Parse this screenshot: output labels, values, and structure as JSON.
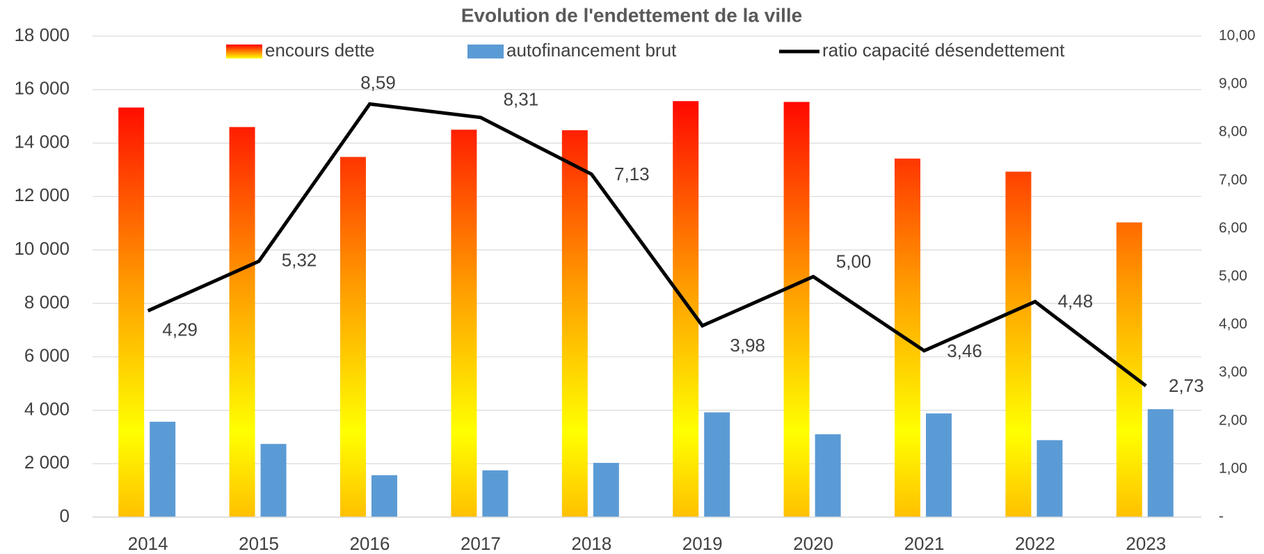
{
  "chart_data": {
    "type": "bar_line",
    "title": "Evolution de l'endettement de la ville",
    "categories": [
      "2014",
      "2015",
      "2016",
      "2017",
      "2018",
      "2019",
      "2020",
      "2021",
      "2022",
      "2023"
    ],
    "series": [
      {
        "name": "encours dette",
        "color": "gradient",
        "values": [
          15330,
          14600,
          13480,
          14500,
          14480,
          15570,
          15540,
          13420,
          12930,
          11030
        ]
      },
      {
        "name": "autofinancement brut",
        "color": "#5b9bd5",
        "values": [
          3570,
          2740,
          1570,
          1750,
          2030,
          3920,
          3100,
          3880,
          2880,
          4040
        ]
      },
      {
        "name": "ratio capacité désendettement",
        "color": "#000000",
        "axis": "y2",
        "type": "line",
        "values": [
          4.29,
          5.32,
          8.59,
          8.31,
          7.13,
          3.98,
          5.0,
          3.46,
          4.48,
          2.73
        ],
        "value_labels": [
          "4,29",
          "5,32",
          "8,59",
          "8,31",
          "7,13",
          "3,98",
          "5,00",
          "3,46",
          "4,48",
          "2,73"
        ]
      }
    ],
    "ylim": [
      0,
      18000
    ],
    "yticks": [
      0,
      {
        "value": 2000,
        "label": "2 000"
      },
      {
        "value": 4000,
        "label": "4 000"
      },
      {
        "value": 6000,
        "label": "6 000"
      },
      {
        "value": 8000,
        "label": "8 000"
      },
      {
        "value": 10000,
        "label": "10 000"
      },
      {
        "value": 12000,
        "label": "12 000"
      },
      {
        "value": 14000,
        "label": "14 000"
      },
      {
        "value": 16000,
        "label": "16 000"
      },
      {
        "value": 18000,
        "label": "18 000"
      }
    ],
    "y2lim": [
      0,
      10
    ],
    "y2ticks": [
      {
        "value": 0,
        "label": "-"
      },
      {
        "value": 1,
        "label": "1,00"
      },
      {
        "value": 2,
        "label": "2,00"
      },
      {
        "value": 3,
        "label": "3,00"
      },
      {
        "value": 4,
        "label": "4,00"
      },
      {
        "value": 5,
        "label": "5,00"
      },
      {
        "value": 6,
        "label": "6,00"
      },
      {
        "value": 7,
        "label": "7,00"
      },
      {
        "value": 8,
        "label": "8,00"
      },
      {
        "value": 9,
        "label": "9,00"
      },
      {
        "value": 10,
        "label": "10,00"
      }
    ],
    "grid": true,
    "legend": "top"
  }
}
